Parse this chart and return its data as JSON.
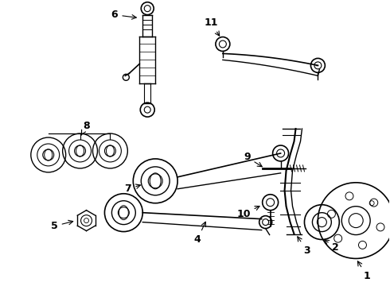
{
  "background_color": "#ffffff",
  "line_color": "#000000",
  "fig_width": 4.9,
  "fig_height": 3.6,
  "dpi": 100,
  "font_size": 9
}
